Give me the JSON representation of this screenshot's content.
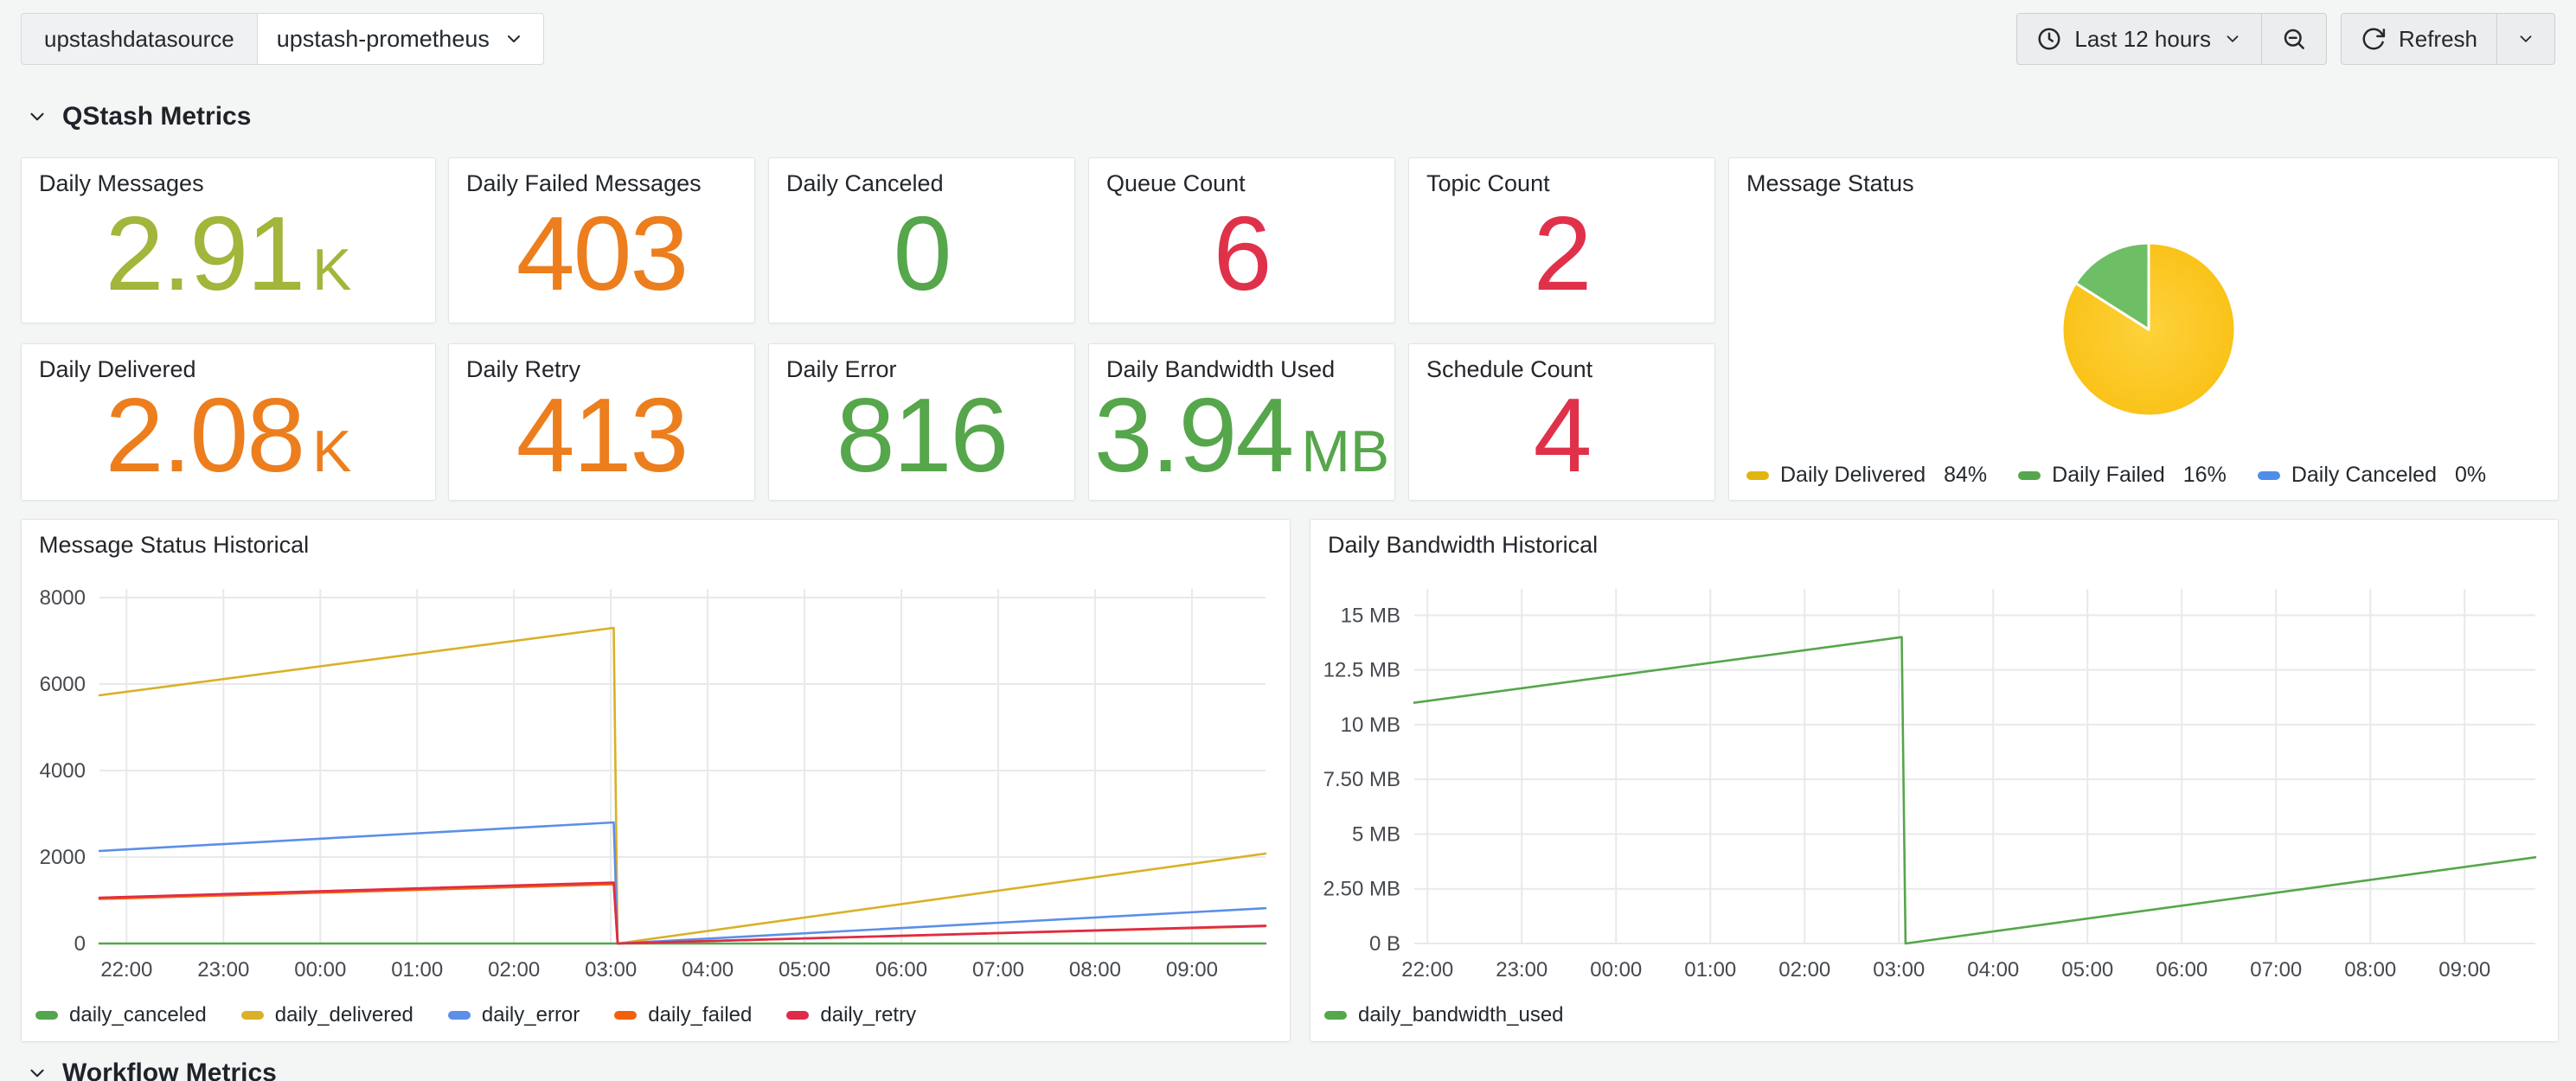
{
  "toolbar": {
    "datasource_label": "upstashdatasource",
    "datasource_value": "upstash-prometheus",
    "time_range_label": "Last 12 hours",
    "refresh_label": "Refresh"
  },
  "sections": {
    "qstash": "QStash Metrics",
    "workflow": "Workflow Metrics"
  },
  "stats": [
    {
      "title": "Daily Messages",
      "value": "2.91",
      "suffix": "K",
      "color": "#A3B53A"
    },
    {
      "title": "Daily Failed Messages",
      "value": "403",
      "suffix": "",
      "color": "#EC7E1E"
    },
    {
      "title": "Daily Canceled",
      "value": "0",
      "suffix": "",
      "color": "#56A64B"
    },
    {
      "title": "Queue Count",
      "value": "6",
      "suffix": "",
      "color": "#E0314B"
    },
    {
      "title": "Topic Count",
      "value": "2",
      "suffix": "",
      "color": "#E0314B"
    },
    {
      "title": "Daily Delivered",
      "value": "2.08",
      "suffix": "K",
      "color": "#EC7E1E"
    },
    {
      "title": "Daily Retry",
      "value": "413",
      "suffix": "",
      "color": "#EC7E1E"
    },
    {
      "title": "Daily Error",
      "value": "816",
      "suffix": "",
      "color": "#56A64B"
    },
    {
      "title": "Daily Bandwidth Used",
      "value": "3.94",
      "suffix": "MB",
      "color": "#56A64B"
    },
    {
      "title": "Schedule Count",
      "value": "4",
      "suffix": "",
      "color": "#E0314B"
    }
  ],
  "chart_data": [
    {
      "type": "pie",
      "title": "Message Status",
      "legend_position": "bottom",
      "slices": [
        {
          "label": "Daily Delivered",
          "pct": 84,
          "color": "#F9BE0E",
          "color_center": "#FDD23C",
          "legend_color": "#E0B50F"
        },
        {
          "label": "Daily Failed",
          "pct": 16,
          "color": "#6DBE64",
          "color_center": "#6DBE64",
          "legend_color": "#56A64B"
        },
        {
          "label": "Daily Canceled",
          "pct": 0,
          "color": "#5794F2",
          "color_center": "#5794F2",
          "legend_color": "#4D8EEA"
        }
      ]
    },
    {
      "type": "line",
      "title": "Message Status Historical",
      "grid": true,
      "legend_position": "bottom",
      "xlim": [
        21.72,
        33.76
      ],
      "ylim": [
        0,
        8200
      ],
      "x_ticks": [
        {
          "v": 22,
          "label": "22:00"
        },
        {
          "v": 23,
          "label": "23:00"
        },
        {
          "v": 24,
          "label": "00:00"
        },
        {
          "v": 25,
          "label": "01:00"
        },
        {
          "v": 26,
          "label": "02:00"
        },
        {
          "v": 27,
          "label": "03:00"
        },
        {
          "v": 28,
          "label": "04:00"
        },
        {
          "v": 29,
          "label": "05:00"
        },
        {
          "v": 30,
          "label": "06:00"
        },
        {
          "v": 31,
          "label": "07:00"
        },
        {
          "v": 32,
          "label": "08:00"
        },
        {
          "v": 33,
          "label": "09:00"
        }
      ],
      "y_ticks": [
        {
          "v": 0,
          "label": "0"
        },
        {
          "v": 2000,
          "label": "2000"
        },
        {
          "v": 4000,
          "label": "4000"
        },
        {
          "v": 6000,
          "label": "6000"
        },
        {
          "v": 8000,
          "label": "8000"
        }
      ],
      "series": [
        {
          "name": "daily_canceled",
          "color": "#53A64E",
          "points": [
            [
              21.72,
              0
            ],
            [
              33.76,
              0
            ]
          ]
        },
        {
          "name": "daily_delivered",
          "color": "#D9B127",
          "points": [
            [
              21.72,
              5740
            ],
            [
              27.03,
              7300
            ],
            [
              27.07,
              0
            ],
            [
              33.76,
              2080
            ]
          ]
        },
        {
          "name": "daily_error",
          "color": "#5B8FE8",
          "points": [
            [
              21.72,
              2140
            ],
            [
              27.03,
              2800
            ],
            [
              27.07,
              0
            ],
            [
              33.76,
              816
            ]
          ]
        },
        {
          "name": "daily_failed",
          "color": "#F2600A",
          "points": [
            [
              21.72,
              1030
            ],
            [
              27.03,
              1370
            ],
            [
              27.07,
              0
            ],
            [
              33.76,
              403
            ]
          ]
        },
        {
          "name": "daily_retry",
          "color": "#E02A49",
          "points": [
            [
              21.72,
              1060
            ],
            [
              27.03,
              1410
            ],
            [
              27.07,
              0
            ],
            [
              33.76,
              413
            ]
          ]
        }
      ]
    },
    {
      "type": "line",
      "title": "Daily Bandwidth Historical",
      "grid": true,
      "legend_position": "bottom",
      "xlim": [
        21.86,
        33.75
      ],
      "ylim": [
        0,
        16.2
      ],
      "x_ticks": [
        {
          "v": 22,
          "label": "22:00"
        },
        {
          "v": 23,
          "label": "23:00"
        },
        {
          "v": 24,
          "label": "00:00"
        },
        {
          "v": 25,
          "label": "01:00"
        },
        {
          "v": 26,
          "label": "02:00"
        },
        {
          "v": 27,
          "label": "03:00"
        },
        {
          "v": 28,
          "label": "04:00"
        },
        {
          "v": 29,
          "label": "05:00"
        },
        {
          "v": 30,
          "label": "06:00"
        },
        {
          "v": 31,
          "label": "07:00"
        },
        {
          "v": 32,
          "label": "08:00"
        },
        {
          "v": 33,
          "label": "09:00"
        }
      ],
      "y_ticks": [
        {
          "v": 0,
          "label": "0 B"
        },
        {
          "v": 2.5,
          "label": "2.50 MB"
        },
        {
          "v": 5,
          "label": "5 MB"
        },
        {
          "v": 7.5,
          "label": "7.50 MB"
        },
        {
          "v": 10,
          "label": "10 MB"
        },
        {
          "v": 12.5,
          "label": "12.5 MB"
        },
        {
          "v": 15,
          "label": "15 MB"
        }
      ],
      "series": [
        {
          "name": "daily_bandwidth_used",
          "color": "#56A64B",
          "points": [
            [
              21.86,
              11.0
            ],
            [
              27.03,
              14.0
            ],
            [
              27.07,
              0
            ],
            [
              33.75,
              3.94
            ]
          ]
        }
      ]
    }
  ]
}
